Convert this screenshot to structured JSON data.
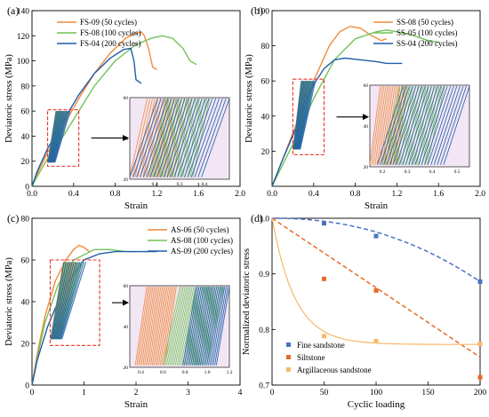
{
  "colors": {
    "orange": "#f28a3c",
    "green": "#72c257",
    "blue": "#1f5ea8",
    "inset_bg": "#f2e6f5",
    "box_red": "#e8322a",
    "fine": "#4a72c4",
    "silt": "#e56b2a",
    "arg": "#f7b865"
  },
  "chart_data": [
    {
      "type": "line",
      "panel_label": "(a)",
      "xlabel": "Strain",
      "ylabel": "Deviatoric stress (MPa)",
      "xlim": [
        0,
        2.0
      ],
      "ylim": [
        0,
        140
      ],
      "xticks": [
        "0.0",
        "0.4",
        "0.8",
        "1.2",
        "1.6",
        "2.0"
      ],
      "yticks": [
        "0",
        "20",
        "40",
        "60",
        "80",
        "100",
        "120",
        "140"
      ],
      "legend_position": "top-left",
      "series": [
        {
          "name": "FS-09 (50 cycles)",
          "color": "orange",
          "x": [
            0,
            0.05,
            0.15,
            0.3,
            0.45,
            0.6,
            0.75,
            0.9,
            1.0,
            1.05,
            1.08,
            1.12,
            1.16,
            1.2
          ],
          "y": [
            0,
            10,
            27,
            48,
            70,
            90,
            106,
            118,
            122,
            123,
            120,
            110,
            95,
            93
          ]
        },
        {
          "name": "FS-08 (100 cycles)",
          "color": "green",
          "x": [
            0,
            0.05,
            0.15,
            0.3,
            0.45,
            0.6,
            0.8,
            1.0,
            1.15,
            1.25,
            1.35,
            1.45,
            1.52,
            1.58
          ],
          "y": [
            0,
            8,
            22,
            40,
            60,
            80,
            100,
            113,
            118,
            120,
            118,
            110,
            100,
            97
          ]
        },
        {
          "name": "FS-04 (200 cycles)",
          "color": "blue",
          "x": [
            0,
            0.05,
            0.15,
            0.3,
            0.45,
            0.6,
            0.75,
            0.88,
            0.95,
            0.98,
            1.0,
            1.05
          ],
          "y": [
            0,
            12,
            30,
            52,
            73,
            90,
            102,
            109,
            110,
            100,
            85,
            82
          ]
        }
      ],
      "box": {
        "x": [
          0.15,
          0.45
        ],
        "y": [
          16,
          61
        ]
      },
      "inset": {
        "xlim": [
          0.1,
          0.5
        ],
        "ylim": [
          20,
          60
        ],
        "xticks": [
          "0.2",
          "0.3",
          "0.4"
        ],
        "yticks": [
          "20",
          "40",
          "60"
        ],
        "bands": [
          {
            "color": "orange",
            "x0": 0.1,
            "x1": 0.35,
            "count": 18
          },
          {
            "color": "green",
            "x0": 0.18,
            "x1": 0.42,
            "count": 18
          },
          {
            "color": "blue",
            "x0": 0.1,
            "x1": 0.5,
            "count": 22
          }
        ]
      }
    },
    {
      "type": "line",
      "panel_label": "(b)",
      "xlabel": "Strain",
      "ylabel": "Deviatoric stress (MPa)",
      "xlim": [
        0,
        2.0
      ],
      "ylim": [
        0,
        100
      ],
      "xticks": [
        "0.0",
        "0.4",
        "0.8",
        "1.2",
        "1.6",
        "2.0"
      ],
      "yticks": [
        "20",
        "40",
        "60",
        "80",
        "100"
      ],
      "legend_position": "top-right",
      "series": [
        {
          "name": "SS-08 (50 cycles)",
          "color": "orange",
          "x": [
            0,
            0.1,
            0.25,
            0.4,
            0.55,
            0.65,
            0.75,
            0.85,
            0.95,
            1.05,
            1.1
          ],
          "y": [
            0,
            15,
            38,
            60,
            80,
            88,
            91,
            90,
            86,
            83,
            84
          ]
        },
        {
          "name": "SS-05 (100 cycles)",
          "color": "green",
          "x": [
            0,
            0.1,
            0.25,
            0.4,
            0.6,
            0.8,
            1.0,
            1.1,
            1.2,
            1.35,
            1.5,
            1.6
          ],
          "y": [
            0,
            12,
            30,
            50,
            72,
            84,
            88,
            89,
            88,
            86,
            83,
            82
          ]
        },
        {
          "name": "SS-04 (200 cycles)",
          "color": "blue",
          "x": [
            0,
            0.1,
            0.25,
            0.4,
            0.5,
            0.6,
            0.7,
            0.85,
            1.0,
            1.1,
            1.25
          ],
          "y": [
            0,
            15,
            36,
            58,
            67,
            72,
            73,
            72,
            71,
            70,
            70
          ]
        }
      ],
      "box": {
        "x": [
          0.2,
          0.5
        ],
        "y": [
          18,
          61
        ]
      },
      "inset": {
        "xlim": [
          0.15,
          0.55
        ],
        "ylim": [
          20,
          60
        ],
        "xticks": [
          "0.2",
          "0.3",
          "0.4",
          "0.5"
        ],
        "yticks": [
          "20",
          "40",
          "60"
        ],
        "bands": [
          {
            "color": "orange",
            "x0": 0.15,
            "x1": 0.3,
            "count": 16
          },
          {
            "color": "green",
            "x0": 0.2,
            "x1": 0.45,
            "count": 18
          },
          {
            "color": "blue",
            "x0": 0.18,
            "x1": 0.55,
            "count": 22
          }
        ]
      }
    },
    {
      "type": "line",
      "panel_label": "(c)",
      "xlabel": "Strain",
      "ylabel": "Deviatoric stress (MPa)",
      "xlim": [
        0,
        4
      ],
      "ylim": [
        0,
        80
      ],
      "xticks": [
        "0",
        "1",
        "2",
        "3",
        "4"
      ],
      "yticks": [
        "0",
        "20",
        "40",
        "60",
        "80"
      ],
      "legend_position": "top-right",
      "series": [
        {
          "name": "AS-06 (50 cycles)",
          "color": "orange",
          "x": [
            0,
            0.1,
            0.25,
            0.45,
            0.65,
            0.8,
            0.9,
            1.0,
            1.1
          ],
          "y": [
            0,
            15,
            33,
            50,
            60,
            65,
            67,
            66,
            64
          ]
        },
        {
          "name": "AS-08 (100 cycles)",
          "color": "green",
          "x": [
            0,
            0.1,
            0.25,
            0.5,
            0.8,
            1.2,
            1.5,
            1.8,
            2.0
          ],
          "y": [
            0,
            13,
            30,
            48,
            60,
            65,
            65,
            64,
            64
          ]
        },
        {
          "name": "AS-09 (200 cycles)",
          "color": "blue",
          "x": [
            0,
            0.1,
            0.3,
            0.6,
            1.0,
            1.3,
            1.6,
            2.0,
            2.4
          ],
          "y": [
            0,
            12,
            28,
            46,
            60,
            63,
            64,
            64,
            64
          ]
        }
      ],
      "box": {
        "x": [
          0.35,
          1.3
        ],
        "y": [
          19,
          60
        ]
      },
      "inset": {
        "xlim": [
          0.3,
          1.2
        ],
        "ylim": [
          20,
          60
        ],
        "xticks": [
          "0.4",
          "0.6",
          "0.8",
          "1.0",
          "1.2"
        ],
        "yticks": [
          "20",
          "40",
          "60"
        ],
        "bands": [
          {
            "color": "orange",
            "x0": 0.35,
            "x1": 0.72,
            "count": 20
          },
          {
            "color": "green",
            "x0": 0.6,
            "x1": 1.15,
            "count": 26
          },
          {
            "color": "blue",
            "x0": 0.78,
            "x1": 1.2,
            "count": 22
          }
        ]
      }
    },
    {
      "type": "scatter",
      "panel_label": "(d)",
      "xlabel": "Cyclic loading",
      "ylabel": "Normalized deviatoric stress",
      "xlim": [
        0,
        200
      ],
      "ylim": [
        0.7,
        1.0
      ],
      "xticks": [
        "0",
        "50",
        "100",
        "150",
        "200"
      ],
      "yticks": [
        "0.7",
        "0.8",
        "0.9",
        "1.0"
      ],
      "legend_position": "bottom-left",
      "series": [
        {
          "name": "Fine sandstone",
          "color": "fine",
          "x": [
            50,
            100,
            200
          ],
          "y": [
            0.991,
            0.968,
            0.886
          ],
          "fit": "dashed"
        },
        {
          "name": "Siltstone",
          "color": "silt",
          "x": [
            50,
            100,
            200
          ],
          "y": [
            0.891,
            0.87,
            0.714
          ],
          "fit": "dashed"
        },
        {
          "name": "Argillaceous sandstone",
          "color": "arg",
          "x": [
            50,
            100,
            200
          ],
          "y": [
            0.788,
            0.779,
            0.774
          ],
          "fit": "solid"
        }
      ]
    }
  ]
}
